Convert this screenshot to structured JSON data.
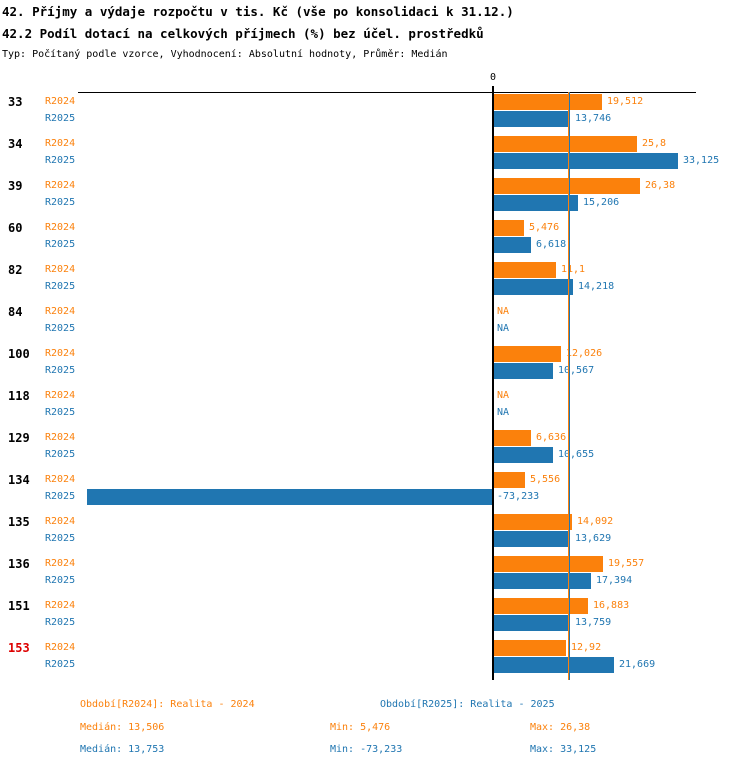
{
  "page": {
    "title": "42. Příjmy a výdaje rozpočtu v tis. Kč (vše po konsolidaci k 31.12.)",
    "subtitle": "42.2 Podíl dotací na celkových příjmech (%) bez účel. prostředků",
    "meta": "Typ: Počítaný podle vzorce, Vyhodnocení: Absolutní hodnoty, Průměr: Medián"
  },
  "colors": {
    "r2024": "#fb810c",
    "r2025": "#2076b1",
    "highlight": "#dd0000",
    "axis": "#000000"
  },
  "chart_data": {
    "type": "bar",
    "orientation": "horizontal",
    "unit": "%",
    "zero_label": "0",
    "series_names": [
      "R2024",
      "R2025"
    ],
    "x_range": [
      -73.233,
      33.125
    ],
    "grid": false,
    "median_lines": [
      {
        "series": "r2024",
        "value": 13.506
      },
      {
        "series": "r2025",
        "value": 13.753
      }
    ],
    "categories": [
      {
        "code": "33",
        "highlight": false,
        "r2024": {
          "label": "19,512",
          "value": 19.512
        },
        "r2025": {
          "label": "13,746",
          "value": 13.746
        }
      },
      {
        "code": "34",
        "highlight": false,
        "r2024": {
          "label": "25,8",
          "value": 25.8
        },
        "r2025": {
          "label": "33,125",
          "value": 33.125
        }
      },
      {
        "code": "39",
        "highlight": false,
        "r2024": {
          "label": "26,38",
          "value": 26.38
        },
        "r2025": {
          "label": "15,206",
          "value": 15.206
        }
      },
      {
        "code": "60",
        "highlight": false,
        "r2024": {
          "label": "5,476",
          "value": 5.476
        },
        "r2025": {
          "label": "6,618",
          "value": 6.618
        }
      },
      {
        "code": "82",
        "highlight": false,
        "r2024": {
          "label": "11,1",
          "value": 11.1
        },
        "r2025": {
          "label": "14,218",
          "value": 14.218
        }
      },
      {
        "code": "84",
        "highlight": false,
        "r2024": {
          "label": "NA",
          "value": null
        },
        "r2025": {
          "label": "NA",
          "value": null
        }
      },
      {
        "code": "100",
        "highlight": false,
        "r2024": {
          "label": "12,026",
          "value": 12.026
        },
        "r2025": {
          "label": "10,567",
          "value": 10.567
        }
      },
      {
        "code": "118",
        "highlight": false,
        "r2024": {
          "label": "NA",
          "value": null
        },
        "r2025": {
          "label": "NA",
          "value": null
        }
      },
      {
        "code": "129",
        "highlight": false,
        "r2024": {
          "label": "6,636",
          "value": 6.636
        },
        "r2025": {
          "label": "10,655",
          "value": 10.655
        }
      },
      {
        "code": "134",
        "highlight": false,
        "r2024": {
          "label": "5,556",
          "value": 5.556
        },
        "r2025": {
          "label": "-73,233",
          "value": -73.233
        }
      },
      {
        "code": "135",
        "highlight": false,
        "r2024": {
          "label": "14,092",
          "value": 14.092
        },
        "r2025": {
          "label": "13,629",
          "value": 13.629
        }
      },
      {
        "code": "136",
        "highlight": false,
        "r2024": {
          "label": "19,557",
          "value": 19.557
        },
        "r2025": {
          "label": "17,394",
          "value": 17.394
        }
      },
      {
        "code": "151",
        "highlight": false,
        "r2024": {
          "label": "16,883",
          "value": 16.883
        },
        "r2025": {
          "label": "13,759",
          "value": 13.759
        }
      },
      {
        "code": "153",
        "highlight": true,
        "r2024": {
          "label": "12,92",
          "value": 12.92
        },
        "r2025": {
          "label": "21,669",
          "value": 21.669
        }
      }
    ]
  },
  "footer": {
    "r2024": {
      "period": "Období[R2024]: Realita - 2024",
      "median": "Medián: 13,506",
      "min": "Min: 5,476",
      "max": "Max: 26,38"
    },
    "r2025": {
      "period": "Období[R2025]: Realita - 2025",
      "median": "Medián: 13,753",
      "min": "Min: -73,233",
      "max": "Max: 33,125"
    }
  }
}
